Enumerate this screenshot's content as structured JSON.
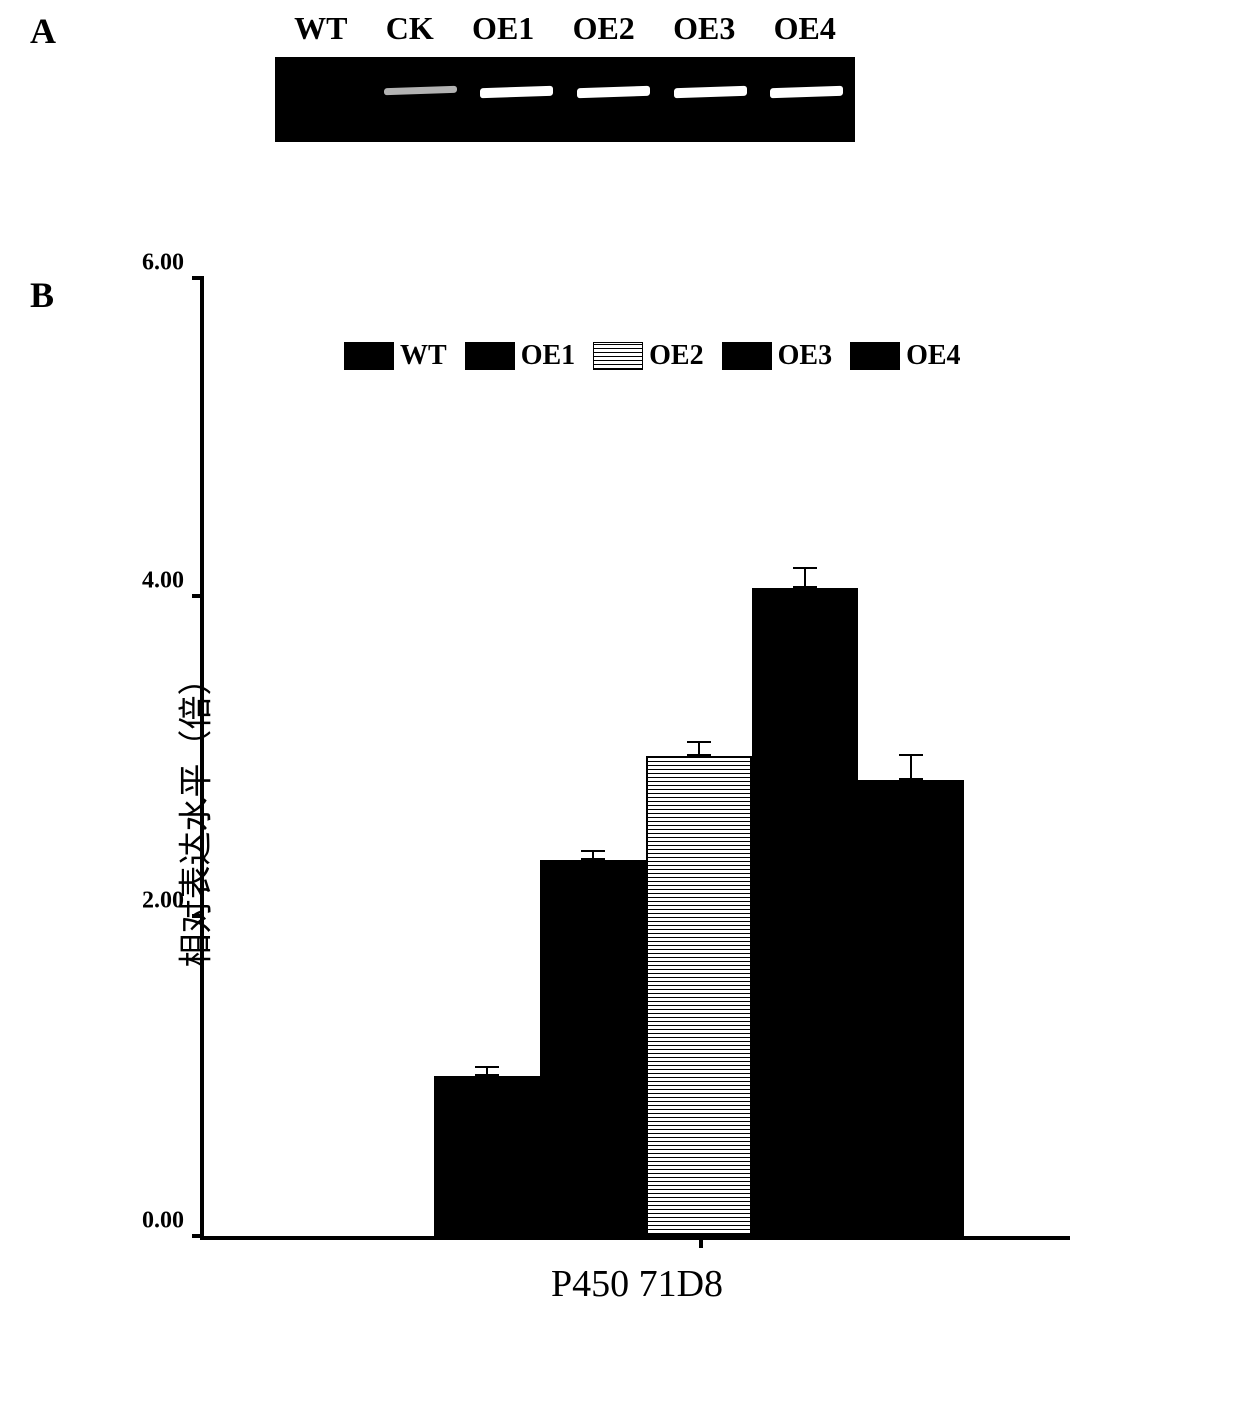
{
  "panelA": {
    "label": "A",
    "lanes": [
      "WT",
      "CK",
      "OE1",
      "OE2",
      "OE3",
      "OE4"
    ],
    "gel_background": "#000000",
    "band_color": "#ffffff",
    "bands_present": [
      false,
      true,
      true,
      true,
      true,
      true
    ],
    "band_intensity": [
      0,
      0.7,
      1.0,
      1.0,
      1.0,
      1.0
    ]
  },
  "panelB": {
    "label": "B",
    "chart": {
      "type": "bar",
      "y_axis_label": "相对表达水平（倍）",
      "x_label": "P450 71D8",
      "ylim": [
        0,
        6
      ],
      "y_ticks": [
        0.0,
        2.0,
        4.0,
        6.0
      ],
      "y_tick_labels": [
        "0.00",
        "2.00",
        "4.00",
        "6.00"
      ],
      "categories": [
        "WT",
        "OE1",
        "OE2",
        "OE3",
        "OE4"
      ],
      "values": [
        1.0,
        2.35,
        3.0,
        4.05,
        2.85
      ],
      "errors": [
        0.05,
        0.05,
        0.08,
        0.12,
        0.15
      ],
      "bar_colors": [
        "#000000",
        "#000000",
        "hatched",
        "#000000",
        "#000000"
      ],
      "bar_width": 1.0,
      "axis_color": "#000000",
      "background_color": "#ffffff",
      "tick_fontsize": 24,
      "label_fontsize": 34,
      "legend": {
        "items": [
          {
            "label": "WT",
            "fill": "#000000"
          },
          {
            "label": "OE1",
            "fill": "#000000"
          },
          {
            "label": "OE2",
            "fill": "hatched"
          },
          {
            "label": "OE3",
            "fill": "#000000"
          },
          {
            "label": "OE4",
            "fill": "#000000"
          }
        ]
      }
    }
  }
}
